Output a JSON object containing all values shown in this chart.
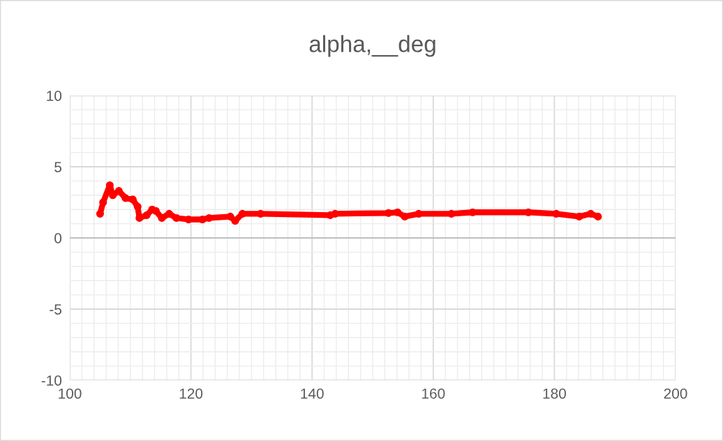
{
  "chart_data": {
    "type": "line",
    "title": "alpha,__deg",
    "x": [
      105.0,
      105.5,
      106.6,
      107.1,
      108.1,
      109.2,
      110.4,
      111.2,
      111.5,
      112.7,
      113.6,
      114.2,
      115.2,
      116.4,
      117.6,
      119.6,
      121.9,
      123,
      126.5,
      127.3,
      128.5,
      131.5,
      143,
      143.8,
      152.6,
      154.1,
      155.3,
      157.6,
      163,
      166.5,
      175.7,
      180.3,
      184.1,
      186,
      187.2
    ],
    "series": [
      {
        "color": "#ff0000",
        "values": [
          1.7,
          2.5,
          3.7,
          3.0,
          3.3,
          2.8,
          2.7,
          2.2,
          1.4,
          1.6,
          2.0,
          1.9,
          1.4,
          1.7,
          1.4,
          1.3,
          1.3,
          1.4,
          1.5,
          1.2,
          1.7,
          1.7,
          1.6,
          1.7,
          1.75,
          1.8,
          1.5,
          1.7,
          1.7,
          1.8,
          1.8,
          1.7,
          1.5,
          1.7,
          1.5
        ]
      }
    ],
    "xlim": [
      100,
      200
    ],
    "xticks": [
      100,
      120,
      140,
      160,
      180,
      200
    ],
    "ylim": [
      -10,
      10
    ],
    "yticks": [
      -10,
      -5,
      0,
      5,
      10
    ],
    "grid": true,
    "marker": "circle",
    "line_style": "solid",
    "ref_lines": [
      {
        "axis": "y",
        "value": 0,
        "color": "#bfbfbf"
      }
    ]
  }
}
